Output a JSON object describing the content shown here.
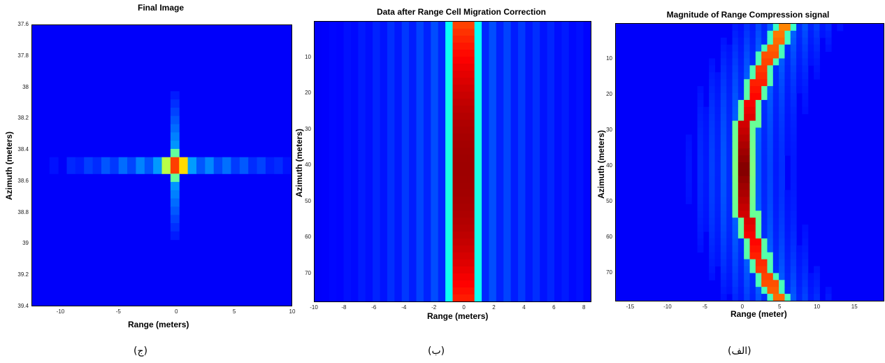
{
  "chart_data": [
    {
      "type": "heatmap",
      "title": "Final Image",
      "xlabel": "Range (meters)",
      "ylabel": "Azimuth (meters)",
      "xlim": [
        -12.5,
        10
      ],
      "ylim": [
        37.6,
        39.4
      ],
      "x_ticks": [
        -10,
        -5,
        0,
        5,
        10
      ],
      "x_tick_labels": [
        "-10",
        "-5",
        "0",
        "5",
        "10"
      ],
      "y_ticks": [
        37.6,
        37.8,
        38,
        38.2,
        38.4,
        38.6,
        38.8,
        39,
        39.2,
        39.4
      ],
      "y_tick_labels": [
        "37.6",
        "37.8",
        "38",
        "38.2",
        "38.4",
        "38.6",
        "38.8",
        "39",
        "39.2",
        "39.4"
      ],
      "peak": {
        "x": 0,
        "y": 38.5
      },
      "colormap": "jet",
      "caption": "(ج)"
    },
    {
      "type": "heatmap",
      "title": "Data after Range Cell Migration Correction",
      "xlabel": "Range (meters)",
      "ylabel": "Azimuth (meters)",
      "xlim": [
        -10,
        8.5
      ],
      "ylim": [
        0,
        78
      ],
      "x_ticks": [
        -10,
        -8,
        -6,
        -4,
        -2,
        0,
        2,
        4,
        6,
        8
      ],
      "x_tick_labels": [
        "-10",
        "-8",
        "-6",
        "-4",
        "-2",
        "0",
        "2",
        "4",
        "6",
        "8"
      ],
      "y_ticks": [
        10,
        20,
        30,
        40,
        50,
        60,
        70
      ],
      "y_tick_labels": [
        "10",
        "20",
        "30",
        "40",
        "50",
        "60",
        "70"
      ],
      "peak_range": 0,
      "colormap": "jet",
      "caption": "(ب)"
    },
    {
      "type": "heatmap",
      "title": "Magnitude of Range Compression signal",
      "xlabel": "Range (meter)",
      "ylabel": "Azimuth (meters)",
      "xlim": [
        -17,
        19
      ],
      "ylim": [
        0,
        78
      ],
      "x_ticks": [
        -15,
        -10,
        -5,
        0,
        5,
        10,
        15
      ],
      "x_tick_labels": [
        "-15",
        "-10",
        "-5",
        "0",
        "5",
        "10",
        "15"
      ],
      "y_ticks": [
        10,
        20,
        30,
        40,
        50,
        60,
        70
      ],
      "y_tick_labels": [
        "10",
        "20",
        "30",
        "40",
        "50",
        "60",
        "70"
      ],
      "curve": {
        "vertex_azimuth": 41,
        "vertex_range": 0,
        "edge_range": 5.5
      },
      "colormap": "jet",
      "caption": "(الف)"
    }
  ]
}
